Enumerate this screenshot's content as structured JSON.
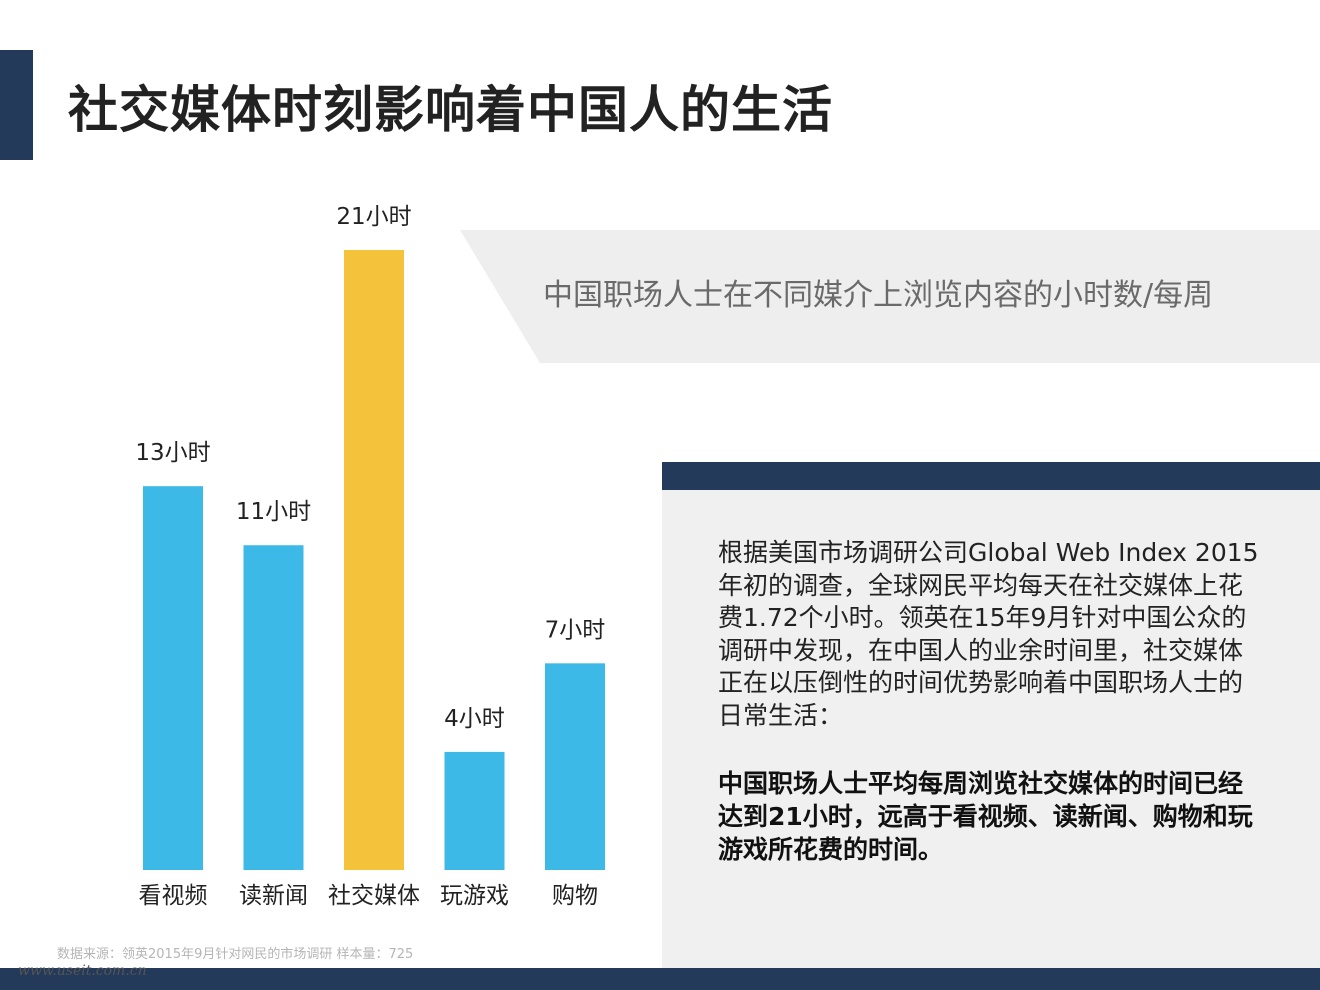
{
  "page": {
    "title": "社交媒体时刻影响着中国人的生活"
  },
  "colors": {
    "accent_navy": "#243a5a",
    "bar_default": "#3cb9e6",
    "bar_highlight": "#f5c33b",
    "panel_gray": "#f0f0f0"
  },
  "chart_data": {
    "type": "bar",
    "title": "中国职场人士在不同媒介上浏览内容的小时数/每周",
    "categories": [
      "看视频",
      "读新闻",
      "社交媒体",
      "玩游戏",
      "购物"
    ],
    "values": [
      13,
      11,
      21,
      4,
      7
    ],
    "value_labels": [
      "13小时",
      "11小时",
      "21小时",
      "4小时",
      "7小时"
    ],
    "unit": "小时",
    "highlight_index": 2,
    "ylim": [
      0,
      21
    ],
    "grid": false,
    "legend": "none"
  },
  "info": {
    "body": "根据美国市场调研公司Global Web Index 2015年初的调查，全球网民平均每天在社交媒体上花费1.72个小时。领英在15年9月针对中国公众的调研中发现，在中国人的业余时间里，社交媒体正在以压倒性的时间优势影响着中国职场人士的日常生活：",
    "highlight": "中国职场人士平均每周浏览社交媒体的时间已经达到21小时，远高于看视频、读新闻、购物和玩游戏所花费的时间。"
  },
  "footer": {
    "source": "数据来源：领英2015年9月针对网民的市场调研  样本量：725",
    "watermark": "www.useit.com.cn"
  }
}
